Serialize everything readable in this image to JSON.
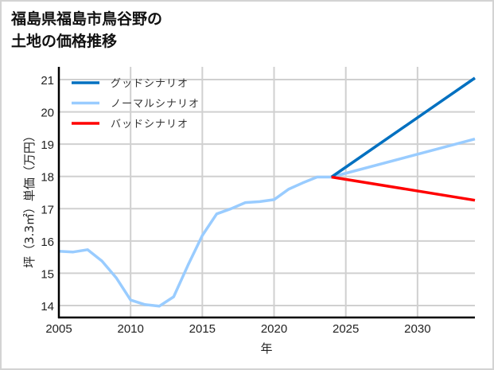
{
  "title_line1": "福島県福島市鳥谷野の",
  "title_line2": "土地の価格推移",
  "chart_data": {
    "type": "line",
    "title": "福島県福島市鳥谷野の土地の価格推移",
    "xlabel": "年",
    "ylabel": "坪（3.3㎡）単価（万円）",
    "xlim": [
      2005,
      2034
    ],
    "ylim": [
      13.6,
      21.4
    ],
    "xticks": [
      2005,
      2010,
      2015,
      2020,
      2025,
      2030
    ],
    "yticks": [
      14,
      15,
      16,
      17,
      18,
      19,
      20,
      21
    ],
    "grid": true,
    "legend_position": "upper left",
    "series": [
      {
        "name": "グッドシナリオ",
        "color": "#0070c0",
        "x": [
          2024,
          2034
        ],
        "values": [
          17.98,
          21.05
        ]
      },
      {
        "name": "ノーマルシナリオ",
        "color": "#99ccff",
        "x": [
          2005,
          2006,
          2007,
          2008,
          2009,
          2010,
          2011,
          2012,
          2013,
          2014,
          2015,
          2016,
          2017,
          2018,
          2019,
          2020,
          2021,
          2022,
          2023,
          2024,
          2034
        ],
        "values": [
          15.68,
          15.66,
          15.73,
          15.38,
          14.86,
          14.17,
          14.03,
          13.98,
          14.27,
          15.25,
          16.17,
          16.84,
          17.0,
          17.19,
          17.22,
          17.28,
          17.6,
          17.8,
          17.98,
          17.98,
          19.16
        ]
      },
      {
        "name": "バッドシナリオ",
        "color": "#ff0000",
        "x": [
          2024,
          2034
        ],
        "values": [
          17.98,
          17.26
        ]
      }
    ]
  }
}
